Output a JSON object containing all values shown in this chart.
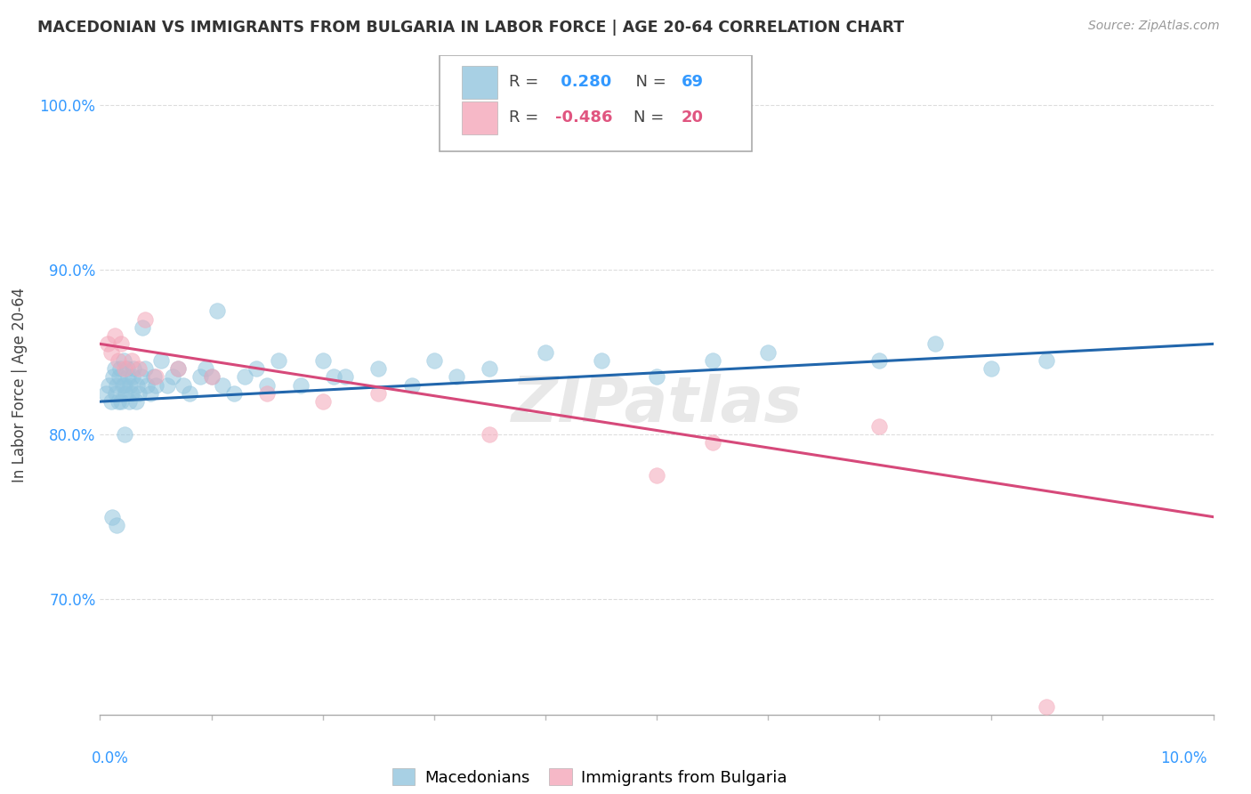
{
  "title": "MACEDONIAN VS IMMIGRANTS FROM BULGARIA IN LABOR FORCE | AGE 20-64 CORRELATION CHART",
  "source": "Source: ZipAtlas.com",
  "ylabel": "In Labor Force | Age 20-64",
  "legend_label_blue": "Macedonians",
  "legend_label_pink": "Immigrants from Bulgaria",
  "R_blue": 0.28,
  "N_blue": 69,
  "R_pink": -0.486,
  "N_pink": 20,
  "blue_color": "#92c5de",
  "pink_color": "#f4a7b9",
  "blue_line_color": "#2166ac",
  "pink_line_color": "#d6497a",
  "xlim": [
    0.0,
    10.0
  ],
  "ylim": [
    63.0,
    103.0
  ],
  "yticks": [
    70.0,
    80.0,
    90.0,
    100.0
  ],
  "blue_x": [
    0.05,
    0.08,
    0.1,
    0.12,
    0.13,
    0.14,
    0.15,
    0.16,
    0.17,
    0.18,
    0.19,
    0.2,
    0.21,
    0.22,
    0.23,
    0.24,
    0.25,
    0.26,
    0.27,
    0.28,
    0.29,
    0.3,
    0.32,
    0.33,
    0.35,
    0.37,
    0.4,
    0.42,
    0.45,
    0.48,
    0.5,
    0.55,
    0.6,
    0.65,
    0.7,
    0.75,
    0.8,
    0.9,
    0.95,
    1.0,
    1.1,
    1.2,
    1.3,
    1.4,
    1.5,
    1.6,
    1.8,
    2.0,
    2.2,
    2.5,
    2.8,
    3.0,
    3.2,
    3.5,
    4.0,
    4.5,
    5.0,
    5.5,
    6.0,
    7.0,
    7.5,
    8.0,
    8.5,
    0.11,
    0.15,
    0.22,
    0.38,
    1.05,
    2.1
  ],
  "blue_y": [
    82.5,
    83.0,
    82.0,
    83.5,
    84.0,
    82.5,
    83.0,
    82.0,
    83.5,
    84.0,
    82.0,
    83.0,
    84.5,
    83.0,
    82.5,
    84.0,
    83.5,
    82.0,
    83.0,
    82.5,
    83.5,
    84.0,
    82.0,
    83.0,
    82.5,
    83.5,
    84.0,
    83.0,
    82.5,
    83.5,
    83.0,
    84.5,
    83.0,
    83.5,
    84.0,
    83.0,
    82.5,
    83.5,
    84.0,
    83.5,
    83.0,
    82.5,
    83.5,
    84.0,
    83.0,
    84.5,
    83.0,
    84.5,
    83.5,
    84.0,
    83.0,
    84.5,
    83.5,
    84.0,
    85.0,
    84.5,
    83.5,
    84.5,
    85.0,
    84.5,
    85.5,
    84.0,
    84.5,
    75.0,
    74.5,
    80.0,
    86.5,
    87.5,
    83.5
  ],
  "pink_x": [
    0.07,
    0.1,
    0.13,
    0.16,
    0.19,
    0.22,
    0.28,
    0.35,
    0.5,
    0.7,
    1.0,
    1.5,
    2.0,
    2.5,
    3.5,
    5.0,
    5.5,
    7.0,
    8.5,
    0.4
  ],
  "pink_y": [
    85.5,
    85.0,
    86.0,
    84.5,
    85.5,
    84.0,
    84.5,
    84.0,
    83.5,
    84.0,
    83.5,
    82.5,
    82.0,
    82.5,
    80.0,
    77.5,
    79.5,
    80.5,
    63.5,
    87.0
  ],
  "blue_trendline": [
    82.0,
    85.5
  ],
  "pink_trendline": [
    85.5,
    75.0
  ]
}
